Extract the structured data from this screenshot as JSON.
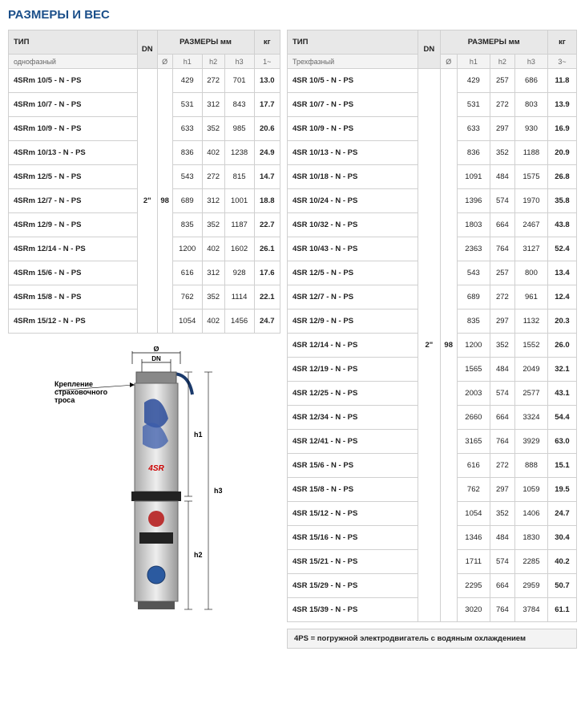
{
  "title": "РАЗМЕРЫ И ВЕС",
  "headers": {
    "type": "ТИП",
    "dn": "DN",
    "dims": "РАЗМЕРЫ мм",
    "kg": "кг",
    "dia": "Ø",
    "h1": "h1",
    "h2": "h2",
    "h3": "h3",
    "phase1": "1~",
    "phase3": "3~",
    "single": "однофазный",
    "three": "Трехфазный"
  },
  "leftTable": {
    "dn": "2\"",
    "dia": "98",
    "rows": [
      {
        "model": "4SRm 10/5   - N - PS",
        "h1": "429",
        "h2": "272",
        "h3": "701",
        "kg": "13.0"
      },
      {
        "model": "4SRm 10/7   - N - PS",
        "h1": "531",
        "h2": "312",
        "h3": "843",
        "kg": "17.7"
      },
      {
        "model": "4SRm 10/9   - N - PS",
        "h1": "633",
        "h2": "352",
        "h3": "985",
        "kg": "20.6"
      },
      {
        "model": "4SRm 10/13 - N - PS",
        "h1": "836",
        "h2": "402",
        "h3": "1238",
        "kg": "24.9"
      },
      {
        "model": "4SRm 12/5   - N - PS",
        "h1": "543",
        "h2": "272",
        "h3": "815",
        "kg": "14.7"
      },
      {
        "model": "4SRm 12/7   - N - PS",
        "h1": "689",
        "h2": "312",
        "h3": "1001",
        "kg": "18.8"
      },
      {
        "model": "4SRm 12/9   - N - PS",
        "h1": "835",
        "h2": "352",
        "h3": "1187",
        "kg": "22.7"
      },
      {
        "model": "4SRm 12/14 - N - PS",
        "h1": "1200",
        "h2": "402",
        "h3": "1602",
        "kg": "26.1"
      },
      {
        "model": "4SRm 15/6   - N - PS",
        "h1": "616",
        "h2": "312",
        "h3": "928",
        "kg": "17.6"
      },
      {
        "model": "4SRm 15/8   - N - PS",
        "h1": "762",
        "h2": "352",
        "h3": "1114",
        "kg": "22.1"
      },
      {
        "model": "4SRm 15/12 - N - PS",
        "h1": "1054",
        "h2": "402",
        "h3": "1456",
        "kg": "24.7"
      }
    ]
  },
  "rightTable": {
    "dn": "2\"",
    "dia": "98",
    "rows": [
      {
        "model": "4SR 10/5   - N - PS",
        "h1": "429",
        "h2": "257",
        "h3": "686",
        "kg": "11.8"
      },
      {
        "model": "4SR 10/7   - N - PS",
        "h1": "531",
        "h2": "272",
        "h3": "803",
        "kg": "13.9"
      },
      {
        "model": "4SR 10/9   - N - PS",
        "h1": "633",
        "h2": "297",
        "h3": "930",
        "kg": "16.9"
      },
      {
        "model": "4SR 10/13 - N - PS",
        "h1": "836",
        "h2": "352",
        "h3": "1188",
        "kg": "20.9"
      },
      {
        "model": "4SR 10/18 - N - PS",
        "h1": "1091",
        "h2": "484",
        "h3": "1575",
        "kg": "26.8"
      },
      {
        "model": "4SR 10/24 - N - PS",
        "h1": "1396",
        "h2": "574",
        "h3": "1970",
        "kg": "35.8"
      },
      {
        "model": "4SR 10/32 - N - PS",
        "h1": "1803",
        "h2": "664",
        "h3": "2467",
        "kg": "43.8"
      },
      {
        "model": "4SR 10/43 - N - PS",
        "h1": "2363",
        "h2": "764",
        "h3": "3127",
        "kg": "52.4"
      },
      {
        "model": "4SR 12/5   - N - PS",
        "h1": "543",
        "h2": "257",
        "h3": "800",
        "kg": "13.4"
      },
      {
        "model": "4SR 12/7   - N - PS",
        "h1": "689",
        "h2": "272",
        "h3": "961",
        "kg": "12.4"
      },
      {
        "model": "4SR 12/9   - N - PS",
        "h1": "835",
        "h2": "297",
        "h3": "1132",
        "kg": "20.3"
      },
      {
        "model": "4SR 12/14 - N - PS",
        "h1": "1200",
        "h2": "352",
        "h3": "1552",
        "kg": "26.0"
      },
      {
        "model": "4SR 12/19 - N - PS",
        "h1": "1565",
        "h2": "484",
        "h3": "2049",
        "kg": "32.1"
      },
      {
        "model": "4SR 12/25 - N - PS",
        "h1": "2003",
        "h2": "574",
        "h3": "2577",
        "kg": "43.1"
      },
      {
        "model": "4SR 12/34 - N - PS",
        "h1": "2660",
        "h2": "664",
        "h3": "3324",
        "kg": "54.4"
      },
      {
        "model": "4SR 12/41 - N - PS",
        "h1": "3165",
        "h2": "764",
        "h3": "3929",
        "kg": "63.0"
      },
      {
        "model": "4SR 15/6   - N - PS",
        "h1": "616",
        "h2": "272",
        "h3": "888",
        "kg": "15.1"
      },
      {
        "model": "4SR 15/8   - N - PS",
        "h1": "762",
        "h2": "297",
        "h3": "1059",
        "kg": "19.5"
      },
      {
        "model": "4SR 15/12 - N - PS",
        "h1": "1054",
        "h2": "352",
        "h3": "1406",
        "kg": "24.7"
      },
      {
        "model": "4SR 15/16 - N - PS",
        "h1": "1346",
        "h2": "484",
        "h3": "1830",
        "kg": "30.4"
      },
      {
        "model": "4SR 15/21 - N - PS",
        "h1": "1711",
        "h2": "574",
        "h3": "2285",
        "kg": "40.2"
      },
      {
        "model": "4SR 15/29 - N - PS",
        "h1": "2295",
        "h2": "664",
        "h3": "2959",
        "kg": "50.7"
      },
      {
        "model": "4SR 15/39 - N - PS",
        "h1": "3020",
        "h2": "764",
        "h3": "3784",
        "kg": "61.1"
      }
    ]
  },
  "diagram": {
    "cableNote": "Крепление\nстраховочного\nтроса",
    "dia": "Ø",
    "dn": "DN",
    "h1": "h1",
    "h2": "h2",
    "h3": "h3"
  },
  "footnote": "4PS = погружной электродвигатель с водяным охлаждением"
}
